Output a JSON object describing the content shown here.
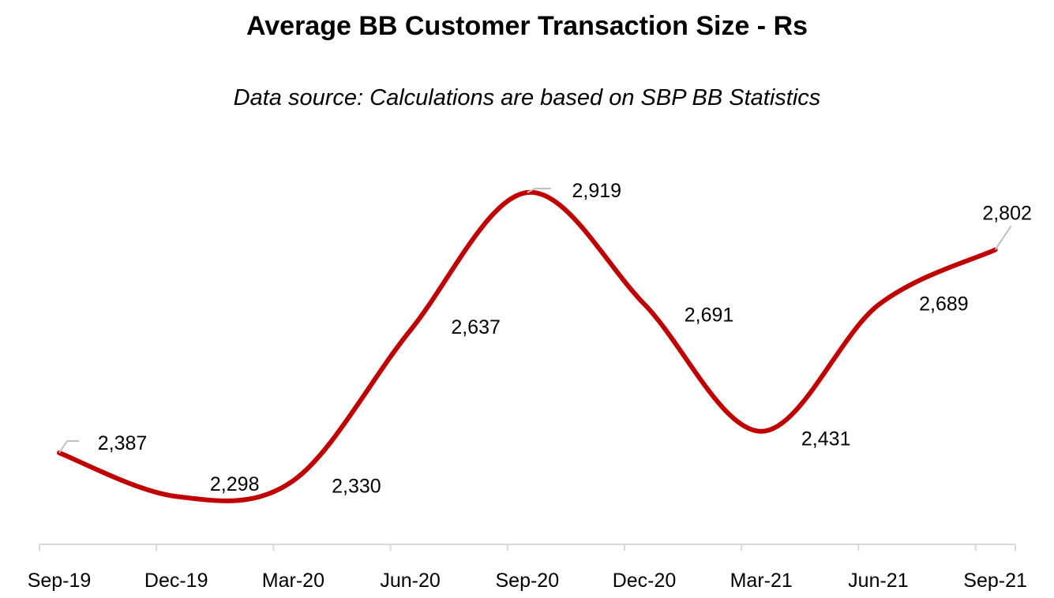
{
  "chart_data": {
    "type": "line",
    "title": "Average BB Customer Transaction Size - Rs",
    "subtitle": "Data source: Calculations are based on SBP BB Statistics",
    "categories": [
      "Sep-19",
      "Dec-19",
      "Mar-20",
      "Jun-20",
      "Sep-20",
      "Dec-20",
      "Mar-21",
      "Jun-21",
      "Sep-21"
    ],
    "series": [
      {
        "name": "Average BB Customer Transaction Size",
        "values": [
          2387,
          2298,
          2330,
          2637,
          2919,
          2691,
          2431,
          2689,
          2802
        ],
        "color": "#c00000"
      }
    ],
    "data_labels": [
      "2,387",
      "2,298",
      "2,330",
      "2,637",
      "2,919",
      "2,691",
      "2,431",
      "2,689",
      "2,802"
    ],
    "xlabel": "",
    "ylabel": "",
    "ylim": [
      2200,
      2950
    ],
    "smooth": true,
    "grid": false,
    "legend": "none"
  }
}
